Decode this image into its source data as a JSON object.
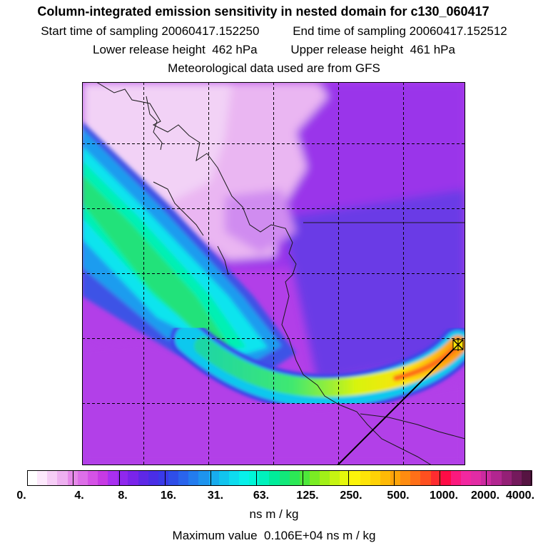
{
  "header": {
    "title": "Column-integrated emission sensitivity in nested domain for c130_060417",
    "start_label": "Start time of sampling",
    "start_value": "20060417.152250",
    "end_label": "End time of sampling",
    "end_value": "20060417.152512",
    "lower_label": "Lower release height",
    "lower_value": "462 hPa",
    "upper_label": "Upper release height",
    "upper_value": "461 hPa",
    "met_text": "Meteorological data used are from GFS"
  },
  "legend": {
    "tick_labels": [
      "0.",
      "4.",
      "8.",
      "16.",
      "31.",
      "63.",
      "125.",
      "250.",
      "500.",
      "1000.",
      "2000.",
      "4000."
    ],
    "colors": [
      "#ffffff",
      "#fde9fc",
      "#f6cdf6",
      "#eeb0f0",
      "#e68ae9",
      "#de6fe8",
      "#d552e6",
      "#c73ae4",
      "#a92ff0",
      "#9028ee",
      "#7a24ea",
      "#5e28e6",
      "#4a2ee6",
      "#3a3ae8",
      "#2f4ee8",
      "#2a64ec",
      "#237cee",
      "#1e94ee",
      "#18acee",
      "#12c4ee",
      "#0edcee",
      "#08f0ea",
      "#00f6d8",
      "#00f2bc",
      "#00ec9a",
      "#12e87a",
      "#2ce856",
      "#4ee83a",
      "#7aec24",
      "#a2f018",
      "#c6f412",
      "#e6f80c",
      "#fcf40a",
      "#fde408",
      "#fed206",
      "#feba06",
      "#fea40a",
      "#fe8c10",
      "#fe7018",
      "#fe5020",
      "#fe2c30",
      "#fe0c46",
      "#fb1a7e",
      "#f228a0",
      "#e22ca4",
      "#cc2aa0",
      "#b22690",
      "#942076",
      "#741a5c",
      "#561442"
    ],
    "units": "ns m / kg",
    "max_label": "Maximum value",
    "max_value": "0.106E+04",
    "max_units": "ns m / kg"
  }
}
